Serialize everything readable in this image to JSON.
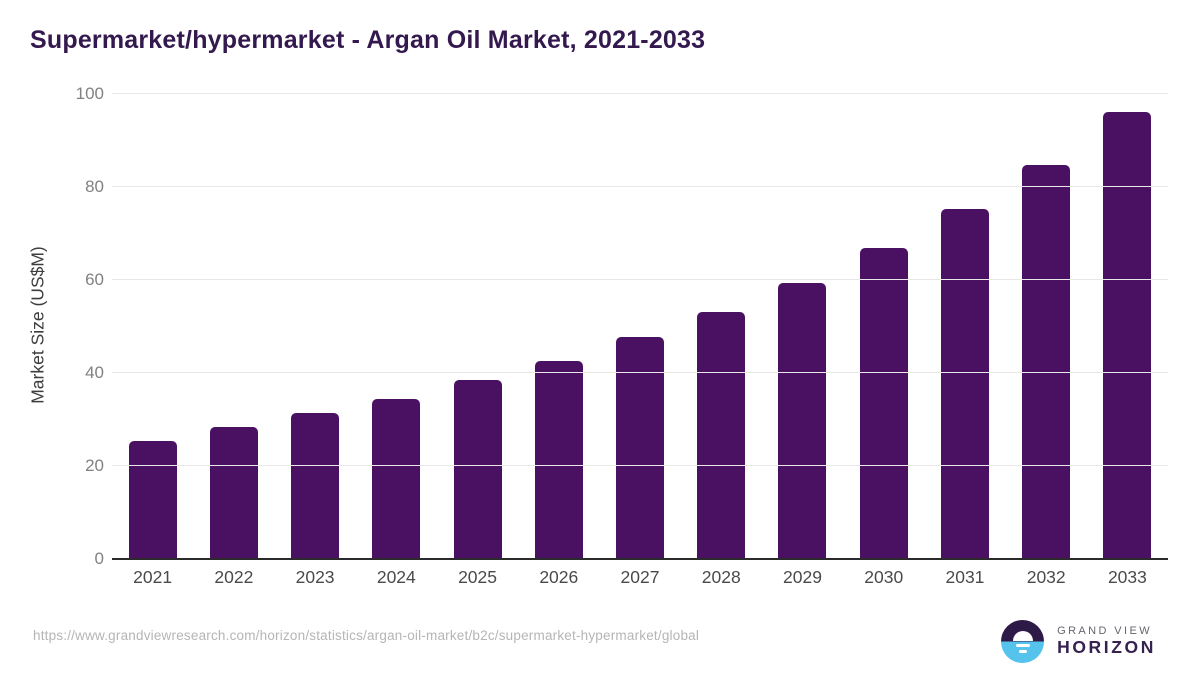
{
  "title": "Supermarket/hypermarket - Argan Oil Market, 2021-2033",
  "chart_data": {
    "type": "bar",
    "title": "Supermarket/hypermarket - Argan Oil Market, 2021-2033",
    "categories": [
      "2021",
      "2022",
      "2023",
      "2024",
      "2025",
      "2026",
      "2027",
      "2028",
      "2029",
      "2030",
      "2031",
      "2032",
      "2033"
    ],
    "values": [
      25.2,
      28.1,
      31.2,
      34.3,
      38.2,
      42.4,
      47.5,
      53.0,
      59.2,
      66.7,
      75.1,
      84.6,
      95.9
    ],
    "xlabel": "",
    "ylabel": "Market Size (US$M)",
    "ylim": [
      0,
      100
    ],
    "yticks": [
      0,
      20,
      40,
      60,
      80,
      100
    ],
    "grid": true,
    "legend": false
  },
  "colors": {
    "bar": "#4a1162",
    "title": "#33194e",
    "gridline": "#e8e8e8",
    "axis_line": "#2b2b2b",
    "logo_purple": "#2e1a47",
    "logo_blue": "#55c3eb",
    "logo_horizon_text": "#36214f"
  },
  "footer": {
    "source_url": "https://www.grandviewresearch.com/horizon/statistics/argan-oil-market/b2c/supermarket-hypermarket/global",
    "logo": {
      "top_text": "GRAND VIEW",
      "bottom_text": "HORIZON",
      "icon": "sunrise-horizon-icon"
    }
  }
}
